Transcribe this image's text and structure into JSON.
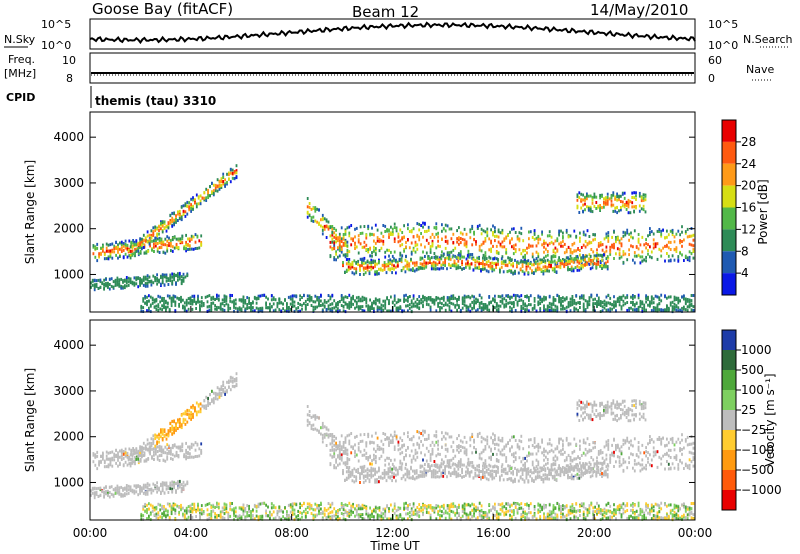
{
  "header": {
    "station": "Goose Bay (fitACF)",
    "beam": "Beam 12",
    "date": "14/May/2010"
  },
  "top_panel": {
    "left_label": "N.Sky",
    "left_ticks": [
      "10^5",
      "10^0"
    ],
    "right_ticks": [
      "10^5",
      "10^0"
    ],
    "right_label": "N.Search"
  },
  "freq_panel": {
    "left_label_1": "Freq.",
    "left_label_2": "[MHz]",
    "left_ticks": [
      "10",
      "8"
    ],
    "right_ticks": [
      "60",
      "0"
    ],
    "right_label": "Nave"
  },
  "cpid": {
    "label": "CPID",
    "text": "themis (tau) 3310"
  },
  "chart_data": [
    {
      "type": "heatmap",
      "title": "",
      "ylabel": "Slant Range [km]",
      "xlabel": "",
      "ylim": [
        180,
        4550
      ],
      "xlim_hours": [
        0,
        24
      ],
      "yticks": [
        "1000",
        "2000",
        "3000",
        "4000"
      ],
      "colorbar": {
        "label": "Power [dB]",
        "ticks": [
          "4",
          "8",
          "12",
          "16",
          "20",
          "24",
          "28"
        ],
        "colors": [
          "#0a19e6",
          "#1f5ab2",
          "#2e8b57",
          "#52b848",
          "#d6de14",
          "#ff9a18",
          "#ff5a10",
          "#e80000"
        ]
      }
    },
    {
      "type": "heatmap",
      "title": "",
      "ylabel": "Slant Range [km]",
      "xlabel": "Time UT",
      "ylim": [
        180,
        4550
      ],
      "xlim_hours": [
        0,
        24
      ],
      "yticks": [
        "1000",
        "2000",
        "3000",
        "4000"
      ],
      "xticks": [
        "00:00",
        "04:00",
        "08:00",
        "12:00",
        "16:00",
        "20:00",
        "00:00"
      ],
      "colorbar": {
        "label": "Velocity [m s⁻¹]",
        "ticks": [
          "1000",
          "500",
          "100",
          "25",
          "−25",
          "−100",
          "−500",
          "−1000"
        ],
        "colors": [
          "#1e3ca8",
          "#2e6b3a",
          "#4ea83a",
          "#7ed060",
          "#bdbdbd",
          "#ffcc30",
          "#ff9a10",
          "#ff5a0a",
          "#e80000"
        ]
      }
    }
  ]
}
